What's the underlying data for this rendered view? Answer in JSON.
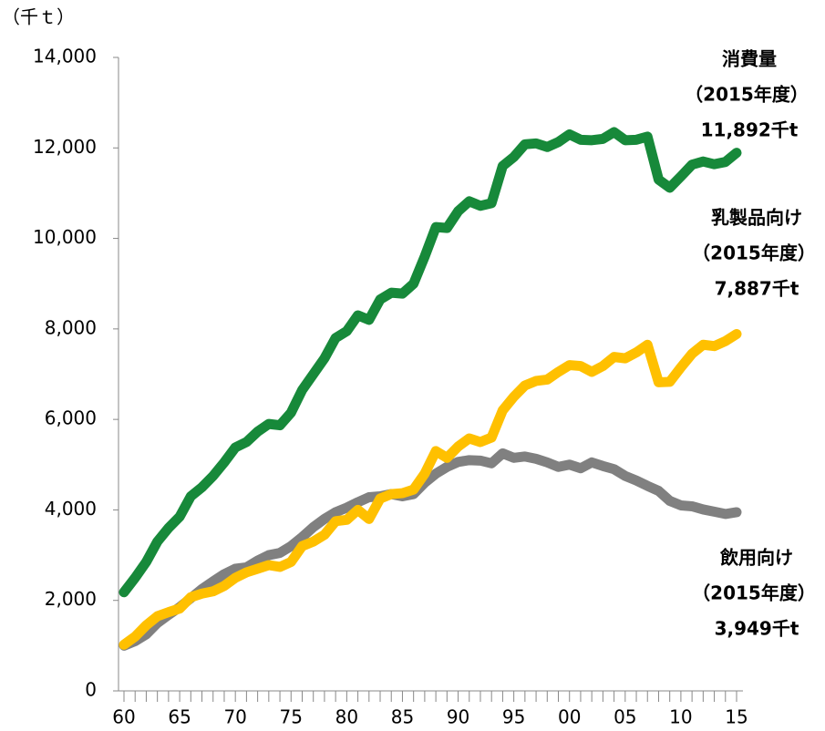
{
  "chart_data": {
    "type": "line",
    "y_label": "（千ｔ）",
    "categories": [
      "60",
      null,
      null,
      null,
      null,
      "65",
      null,
      null,
      null,
      null,
      "70",
      null,
      null,
      null,
      null,
      "75",
      null,
      null,
      null,
      null,
      "80",
      null,
      null,
      null,
      null,
      "85",
      null,
      null,
      null,
      null,
      "90",
      null,
      null,
      null,
      null,
      "95",
      null,
      null,
      null,
      null,
      "00",
      null,
      null,
      null,
      null,
      "05",
      null,
      null,
      null,
      null,
      "10",
      null,
      null,
      null,
      null,
      "15"
    ],
    "series": [
      {
        "name": "消費量",
        "color": "#17893a",
        "label_color": "#17893a",
        "annotations": [
          "（2015年度）",
          "11,892千t"
        ],
        "values": [
          2180,
          2500,
          2850,
          3300,
          3600,
          3850,
          4300,
          4500,
          4750,
          5050,
          5380,
          5500,
          5730,
          5900,
          5870,
          6150,
          6650,
          7000,
          7350,
          7800,
          7950,
          8300,
          8200,
          8650,
          8800,
          8780,
          9000,
          9600,
          10250,
          10230,
          10600,
          10820,
          10720,
          10780,
          11600,
          11800,
          12080,
          12100,
          12020,
          12130,
          12300,
          12180,
          12170,
          12200,
          12350,
          12170,
          12180,
          12250,
          11300,
          11120,
          11370,
          11630,
          11700,
          11640,
          11690,
          11892
        ]
      },
      {
        "name": "乳製品向け",
        "color": "#ffc000",
        "label_color": "#ffb000",
        "annotations": [
          "（2015年度）",
          "7,887千t"
        ],
        "values": [
          1020,
          1200,
          1450,
          1650,
          1740,
          1820,
          2070,
          2150,
          2200,
          2320,
          2500,
          2620,
          2700,
          2780,
          2740,
          2850,
          3200,
          3300,
          3450,
          3750,
          3780,
          4000,
          3800,
          4250,
          4350,
          4370,
          4450,
          4800,
          5300,
          5150,
          5400,
          5580,
          5500,
          5600,
          6200,
          6500,
          6750,
          6850,
          6880,
          7050,
          7200,
          7180,
          7050,
          7180,
          7380,
          7350,
          7480,
          7650,
          6820,
          6830,
          7150,
          7450,
          7650,
          7620,
          7730,
          7887
        ]
      },
      {
        "name": "飲用向け",
        "color": "#808080",
        "label_color": "#808080",
        "annotations": [
          "（2015年度）",
          "3,949千t"
        ],
        "values": [
          1000,
          1100,
          1250,
          1500,
          1680,
          1850,
          2050,
          2250,
          2420,
          2580,
          2700,
          2730,
          2880,
          3000,
          3050,
          3200,
          3400,
          3620,
          3800,
          3950,
          4050,
          4170,
          4280,
          4300,
          4350,
          4300,
          4350,
          4600,
          4800,
          4950,
          5060,
          5100,
          5090,
          5030,
          5250,
          5150,
          5180,
          5130,
          5050,
          4950,
          5000,
          4920,
          5050,
          4970,
          4900,
          4750,
          4650,
          4530,
          4420,
          4200,
          4100,
          4080,
          4010,
          3960,
          3910,
          3949
        ]
      }
    ],
    "ylim": [
      0,
      14000
    ],
    "yticks": [
      0,
      {
        "value": 2000,
        "label": "2,000"
      },
      {
        "value": 4000,
        "label": "4,000"
      },
      {
        "value": 6000,
        "label": "6,000"
      },
      {
        "value": 8000,
        "label": "8,000"
      },
      {
        "value": 10000,
        "label": "10,000"
      },
      {
        "value": 12000,
        "label": "12,000"
      },
      {
        "value": 14000,
        "label": "14,000"
      }
    ],
    "grid": false
  }
}
